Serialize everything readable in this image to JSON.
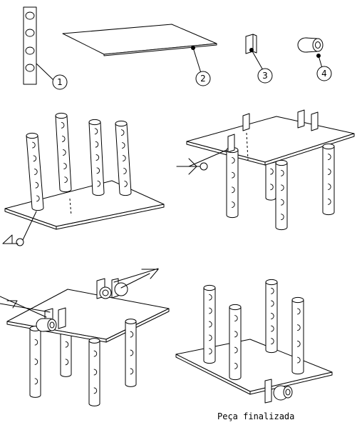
{
  "parts": [
    {
      "number": "1",
      "icon": "column-bar-icon"
    },
    {
      "number": "2",
      "icon": "plate-icon"
    },
    {
      "number": "3",
      "icon": "tab-icon"
    },
    {
      "number": "4",
      "icon": "spacer-icon"
    }
  ],
  "caption": "Peça finalizada"
}
